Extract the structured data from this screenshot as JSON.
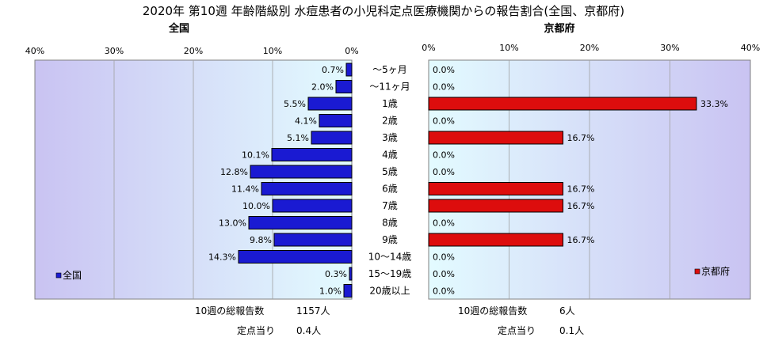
{
  "chart_data": {
    "type": "bar",
    "title": "2020年 第10週 年齢階級別 水痘患者の小児科定点医療機関からの報告割合(全国、京都府)",
    "categories": [
      "～5ヶ月",
      "～11ヶ月",
      "1歳",
      "2歳",
      "3歳",
      "4歳",
      "5歳",
      "6歳",
      "7歳",
      "8歳",
      "9歳",
      "10～14歳",
      "15～19歳",
      "20歳以上"
    ],
    "xlim": [
      0,
      40
    ],
    "ticks": [
      "0%",
      "10%",
      "20%",
      "30%",
      "40%"
    ],
    "tick_values": [
      0,
      10,
      20,
      30,
      40
    ],
    "panels": [
      {
        "title": "全国",
        "legend": "全国",
        "color": "#1a1ad2",
        "direction": "left",
        "values": [
          0.7,
          2.0,
          5.5,
          4.1,
          5.1,
          10.1,
          12.8,
          11.4,
          10.0,
          13.0,
          9.8,
          14.3,
          0.3,
          1.0
        ],
        "labels": [
          "0.7%",
          "2.0%",
          "5.5%",
          "4.1%",
          "5.1%",
          "10.1%",
          "12.8%",
          "11.4%",
          "10.0%",
          "13.0%",
          "9.8%",
          "14.3%",
          "0.3%",
          "1.0%"
        ],
        "summary": {
          "total_label": "10週の総報告数",
          "total_value": "1157人",
          "per_label": "定点当り",
          "per_value": "0.4人"
        }
      },
      {
        "title": "京都府",
        "legend": "京都府",
        "color": "#dd0d0d",
        "direction": "right",
        "values": [
          0.0,
          0.0,
          33.3,
          0.0,
          16.7,
          0.0,
          0.0,
          16.7,
          16.7,
          0.0,
          16.7,
          0.0,
          0.0,
          0.0
        ],
        "labels": [
          "0.0%",
          "0.0%",
          "33.3%",
          "0.0%",
          "16.7%",
          "0.0%",
          "0.0%",
          "16.7%",
          "16.7%",
          "0.0%",
          "16.7%",
          "0.0%",
          "0.0%",
          "0.0%"
        ],
        "summary": {
          "total_label": "10週の総報告数",
          "total_value": "6人",
          "per_label": "定点当り",
          "per_value": "0.1人"
        }
      }
    ]
  }
}
